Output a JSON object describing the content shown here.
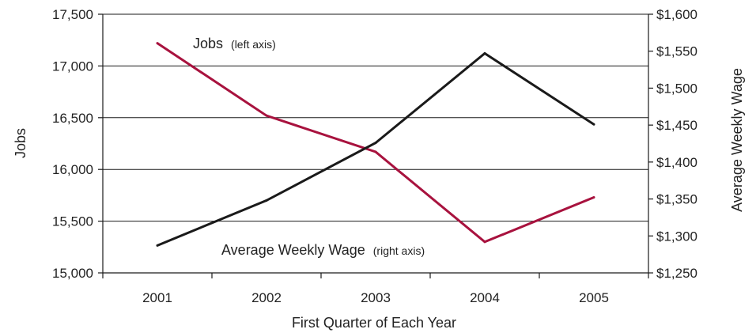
{
  "chart_data": {
    "type": "line",
    "categories": [
      "2001",
      "2002",
      "2003",
      "2004",
      "2005"
    ],
    "series": [
      {
        "name": "Jobs",
        "axis": "left",
        "color": "#a8123e",
        "values": [
          17220,
          16520,
          16170,
          15300,
          15730
        ]
      },
      {
        "name": "Average Weekly Wage",
        "axis": "right",
        "color": "#1a1a1a",
        "values": [
          1287,
          1348,
          1426,
          1547,
          1451
        ]
      }
    ],
    "xlabel": "First Quarter of Each Year",
    "ylabel_left": "Jobs",
    "ylabel_right": "Average Weekly Wage",
    "ylim_left": [
      15000,
      17500
    ],
    "ylim_right": [
      1250,
      1600
    ],
    "left_ticks": [
      15000,
      15500,
      16000,
      16500,
      17000,
      17500
    ],
    "left_tick_labels": [
      "15,000",
      "15,500",
      "16,000",
      "16,500",
      "17,000",
      "17,500"
    ],
    "right_ticks": [
      1250,
      1300,
      1350,
      1400,
      1450,
      1500,
      1550,
      1600
    ],
    "right_tick_labels": [
      "$1,250",
      "$1,300",
      "$1,350",
      "$1,400",
      "$1,450",
      "$1,500",
      "$1,550",
      "$1,600"
    ],
    "grid": "horizontal",
    "annotations": [
      {
        "main": "Jobs",
        "sub": "(left axis)",
        "near": "top-left"
      },
      {
        "main": "Average Weekly Wage",
        "sub": "(right axis)",
        "near": "bottom-center"
      }
    ]
  }
}
